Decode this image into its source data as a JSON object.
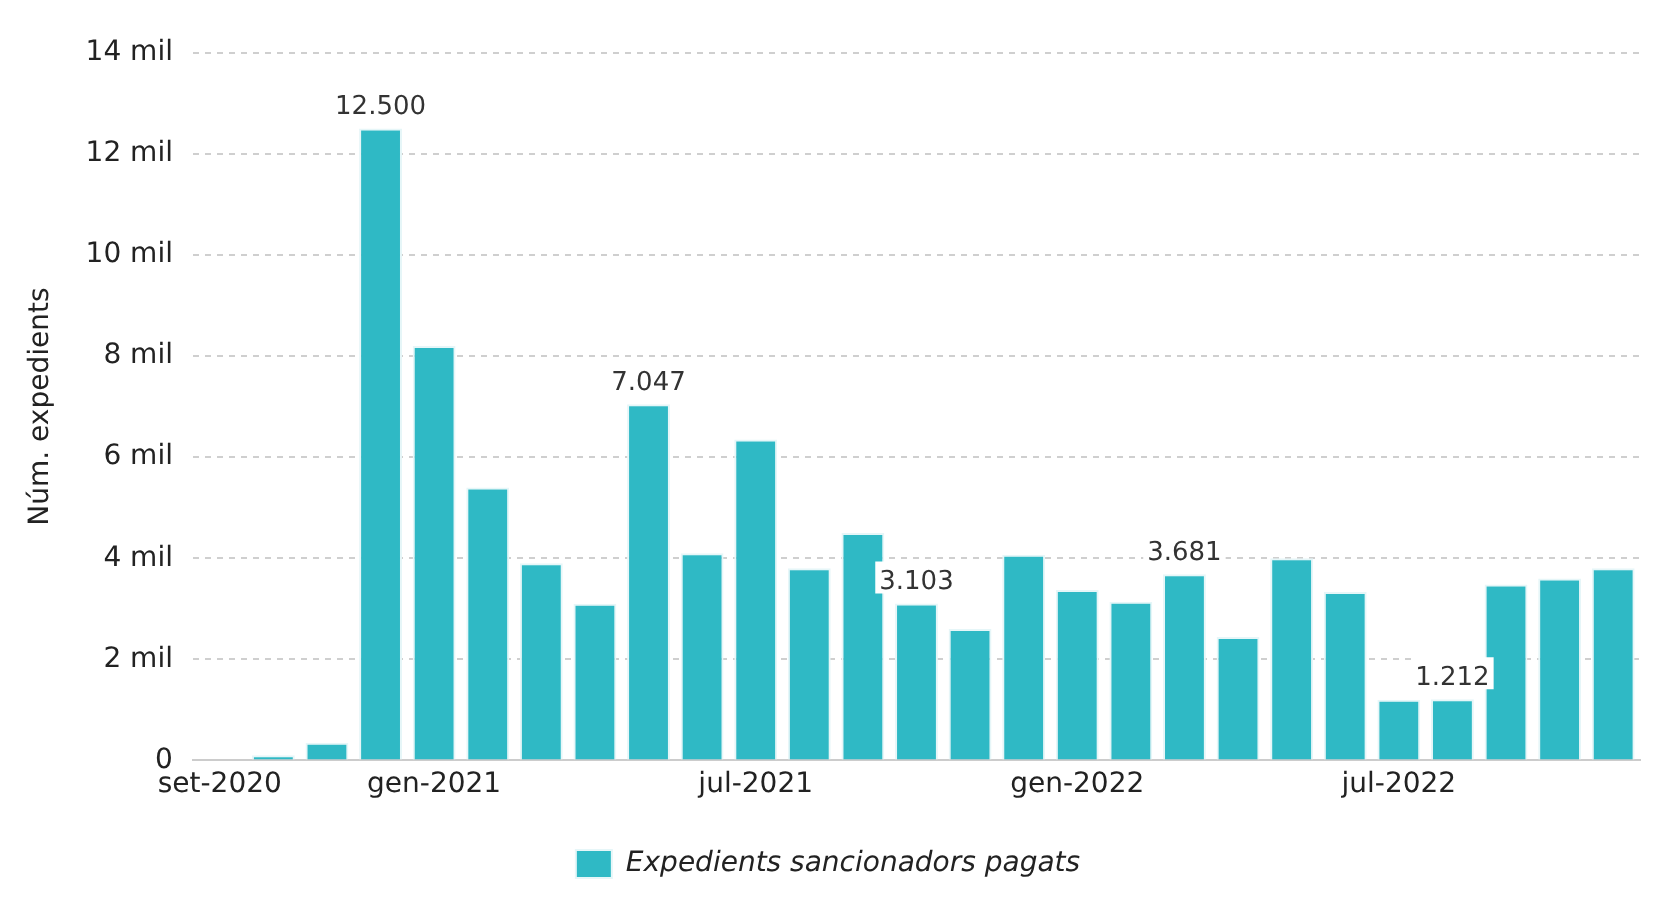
{
  "chart_data": {
    "type": "bar",
    "ylabel": "Núm. expedients",
    "categories": [
      "set-2020",
      null,
      null,
      null,
      "gen-2021",
      null,
      null,
      null,
      null,
      null,
      "jul-2021",
      null,
      null,
      null,
      null,
      null,
      "gen-2022",
      null,
      null,
      null,
      null,
      null,
      "jul-2022",
      null,
      null,
      null,
      null
    ],
    "series": [
      {
        "name": "Expedients sancionadors pagats",
        "color": "#2fb9c5",
        "values": [
          null,
          0.1,
          0.35,
          12.5,
          8.2,
          5.4,
          3.9,
          3.1,
          7.047,
          4.1,
          6.35,
          3.8,
          4.5,
          3.103,
          2.6,
          4.07,
          3.37,
          3.14,
          3.681,
          2.44,
          4.0,
          3.33,
          1.2,
          1.212,
          3.48,
          3.6,
          3.8
        ],
        "value_labels": [
          null,
          null,
          null,
          "12.500",
          null,
          null,
          null,
          null,
          "7.047",
          null,
          null,
          null,
          null,
          "3.103",
          null,
          null,
          null,
          null,
          "3.681",
          null,
          null,
          null,
          null,
          "1.212",
          null,
          null,
          null
        ]
      }
    ],
    "ylim": [
      0,
      14
    ],
    "yticks": [
      0,
      {
        "value": 2,
        "label": "2 mil"
      },
      {
        "value": 4,
        "label": "4 mil"
      },
      {
        "value": 6,
        "label": "6 mil"
      },
      {
        "value": 8,
        "label": "8 mil"
      },
      {
        "value": 10,
        "label": "10 mil"
      },
      {
        "value": 12,
        "label": "12 mil"
      },
      {
        "value": 14,
        "label": "14 mil"
      }
    ],
    "grid": "y",
    "legend": "bottom"
  }
}
